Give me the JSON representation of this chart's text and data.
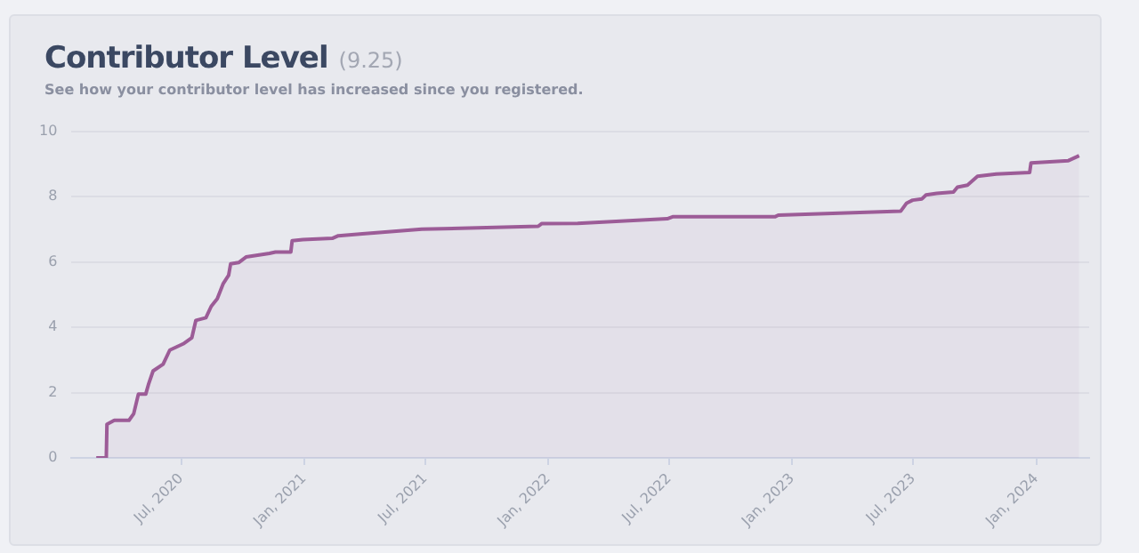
{
  "chart_data": {
    "type": "area",
    "title": "Contributor Level",
    "subtitle": "See how your contributor level has increased since you registered.",
    "annotations": [
      "(9.25)"
    ],
    "x": [
      "2020-02-25",
      "2020-03-11",
      "2020-03-12",
      "2020-03-23",
      "2020-04-14",
      "2020-04-21",
      "2020-04-28",
      "2020-05-09",
      "2020-05-13",
      "2020-05-20",
      "2020-06-04",
      "2020-06-14",
      "2020-07-04",
      "2020-07-17",
      "2020-07-23",
      "2020-08-07",
      "2020-08-15",
      "2020-08-24",
      "2020-09-02",
      "2020-09-10",
      "2020-09-13",
      "2020-09-25",
      "2020-10-06",
      "2020-11-10",
      "2020-11-19",
      "2020-12-12",
      "2020-12-14",
      "2020-12-30",
      "2021-02-12",
      "2021-02-21",
      "2021-03-29",
      "2021-06-26",
      "2021-12-17",
      "2021-12-22",
      "2022-02-14",
      "2022-06-28",
      "2022-07-06",
      "2022-12-06",
      "2022-12-11",
      "2023-06-12",
      "2023-06-21",
      "2023-06-30",
      "2023-07-14",
      "2023-07-20",
      "2023-08-05",
      "2023-08-30",
      "2023-09-05",
      "2023-09-20",
      "2023-10-05",
      "2023-11-02",
      "2023-12-22",
      "2023-12-24",
      "2024-02-18",
      "2024-03-05"
    ],
    "series": [
      {
        "color": "#9c5c97",
        "values": [
          0,
          0,
          1.03,
          1.15,
          1.15,
          1.35,
          1.95,
          1.95,
          2.24,
          2.66,
          2.87,
          3.3,
          3.49,
          3.68,
          4.21,
          4.29,
          4.64,
          4.87,
          5.34,
          5.59,
          5.94,
          5.98,
          6.15,
          6.26,
          6.3,
          6.3,
          6.65,
          6.68,
          6.72,
          6.8,
          6.86,
          7.0,
          7.09,
          7.17,
          7.18,
          7.32,
          7.38,
          7.38,
          7.43,
          7.55,
          7.8,
          7.89,
          7.93,
          8.05,
          8.1,
          8.14,
          8.29,
          8.35,
          8.62,
          8.69,
          8.74,
          9.03,
          9.1,
          9.25
        ]
      }
    ],
    "xlim": [
      "2020-01-19",
      "2024-03-20"
    ],
    "xticks": [
      {
        "value": "2020-07-01",
        "label": "Jul, 2020"
      },
      {
        "value": "2021-01-01",
        "label": "Jan, 2021"
      },
      {
        "value": "2021-07-01",
        "label": "Jul, 2021"
      },
      {
        "value": "2022-01-01",
        "label": "Jan, 2022"
      },
      {
        "value": "2022-07-01",
        "label": "Jul, 2022"
      },
      {
        "value": "2023-01-01",
        "label": "Jan, 2023"
      },
      {
        "value": "2023-07-01",
        "label": "Jul, 2023"
      },
      {
        "value": "2024-01-01",
        "label": "Jan, 2024"
      }
    ],
    "ylim": [
      0,
      10
    ],
    "yticks": [
      0,
      2,
      4,
      6,
      8,
      10
    ],
    "grid": "y",
    "legend": false,
    "marker": "none",
    "line_style": "solid"
  }
}
